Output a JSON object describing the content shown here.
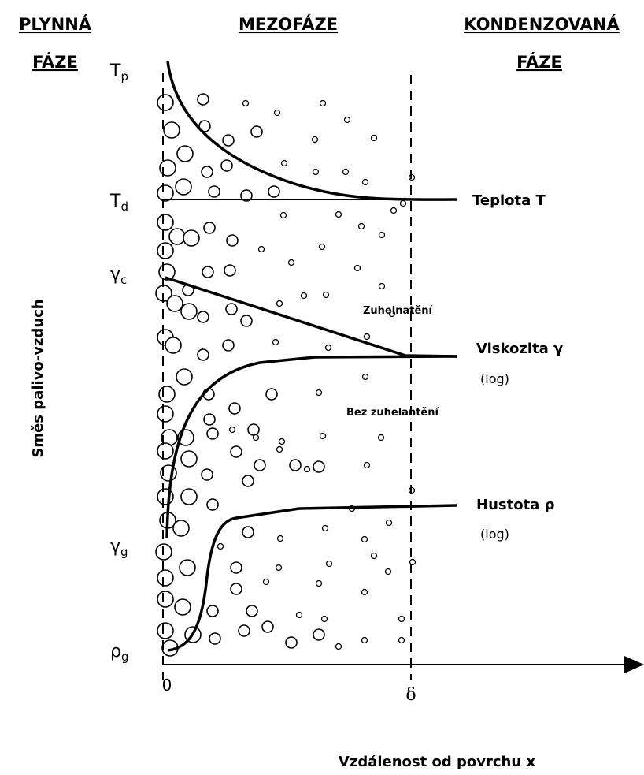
{
  "headers": {
    "gas_phase": [
      "PLYNNÁ",
      "FÁZE"
    ],
    "mesophase": "MEZOFÁZE",
    "condensed_phase": [
      "KONDENZOVANÁ",
      "FÁZE"
    ]
  },
  "left_labels": [
    {
      "symbol": "T",
      "subscript": "p"
    },
    {
      "symbol": "T",
      "subscript": "d"
    },
    {
      "symbol": "γ",
      "subscript": "c"
    },
    {
      "symbol": "γ",
      "subscript": "g"
    },
    {
      "symbol": "ρ",
      "subscript": "g"
    }
  ],
  "curve_labels": [
    {
      "name": "Teplota T"
    },
    {
      "name": "Viskozita γ",
      "note": "(log)"
    },
    {
      "name": "Hustota ρ",
      "note": "(log)"
    }
  ],
  "annotations": [
    "Zuhelnatění",
    "Bez zuhelantění"
  ],
  "y_axis_label": "Směs palivo-vzduch",
  "x_axis": {
    "label": "Vzdálenost od povrchu x",
    "ticks": [
      "0",
      "δ"
    ]
  }
}
